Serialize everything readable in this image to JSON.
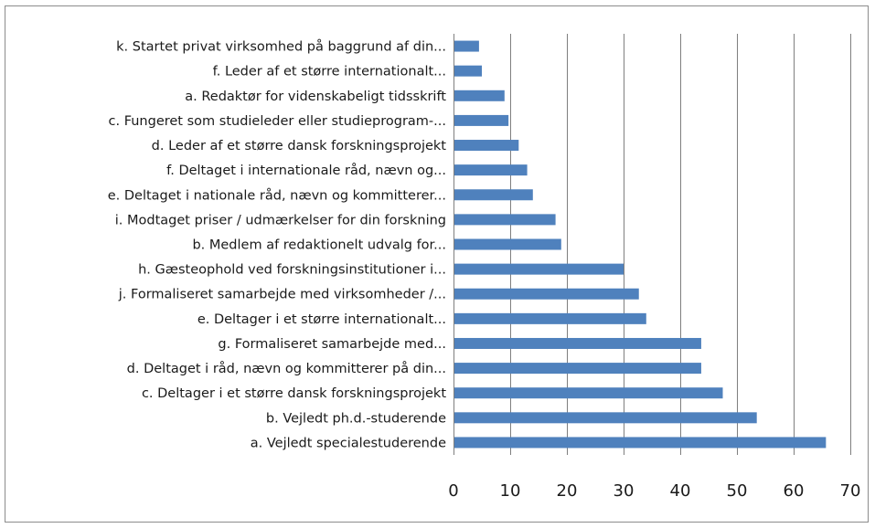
{
  "chart_data": {
    "type": "bar",
    "orientation": "horizontal",
    "categories": [
      "k. Startet privat virksomhed på baggrund af din...",
      "f. Leder af et større internationalt...",
      "a. Redaktør for videnskabeligt tidsskrift",
      "c. Fungeret som studieleder eller studieprogram-...",
      "d. Leder af et større dansk forskningsprojekt",
      "f. Deltaget i internationale råd, nævn og...",
      "e. Deltaget i nationale råd, nævn og kommitterer...",
      "i. Modtaget priser / udmærkelser for din forskning",
      "b. Medlem af redaktionelt udvalg for...",
      "h. Gæsteophold ved forskningsinstitutioner i...",
      "j. Formaliseret samarbejde med virksomheder /...",
      "e. Deltager i et større internationalt...",
      "g. Formaliseret samarbejde med...",
      "d. Deltaget i råd, nævn og kommitterer på din...",
      "c. Deltager i et større dansk forskningsprojekt",
      "b. Vejledt ph.d.-studerende",
      "a. Vejledt specialestuderende"
    ],
    "values": [
      4.5,
      5,
      9,
      9.7,
      11.5,
      13,
      14,
      18,
      19,
      30,
      32.7,
      34,
      43.7,
      43.7,
      47.5,
      53.5,
      65.7
    ],
    "xlim": [
      0,
      70
    ],
    "xticks": [
      "0",
      "10",
      "20",
      "30",
      "40",
      "50",
      "60",
      "70"
    ],
    "grid": "vertical",
    "bar_color": "#4f81bd",
    "grid_color": "#7f7f7f"
  }
}
